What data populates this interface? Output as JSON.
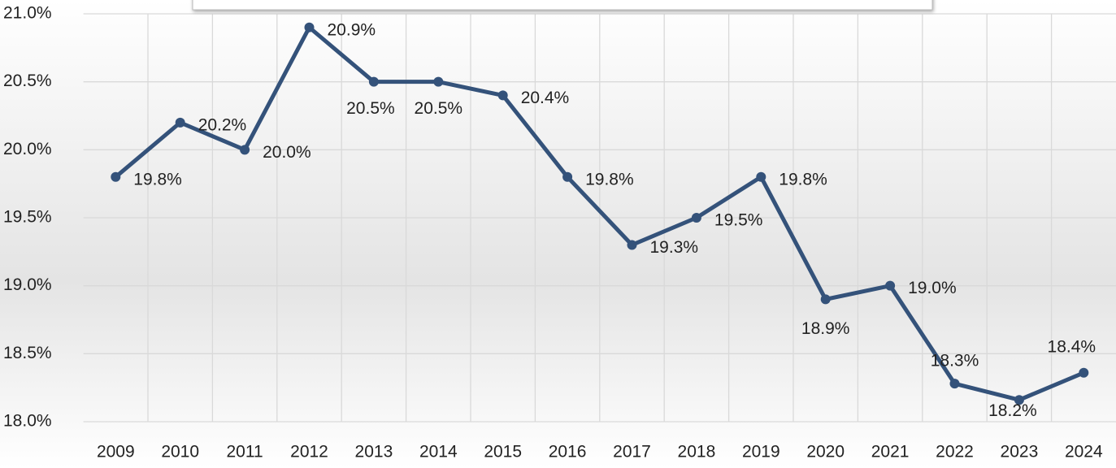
{
  "chart_data": {
    "type": "line",
    "categories": [
      "2009",
      "2010",
      "2011",
      "2012",
      "2013",
      "2014",
      "2015",
      "2016",
      "2017",
      "2018",
      "2019",
      "2020",
      "2021",
      "2022",
      "2023",
      "2024"
    ],
    "series": [
      {
        "color": "#34527a",
        "values": [
          19.8,
          20.2,
          20.0,
          20.9,
          20.5,
          20.5,
          20.4,
          19.8,
          19.3,
          19.5,
          19.8,
          18.9,
          19.0,
          18.28,
          18.16,
          18.36
        ],
        "value_labels": [
          "19.8%",
          "20.2%",
          "20.0%",
          "20.9%",
          "20.5%",
          "20.5%",
          "20.4%",
          "19.8%",
          "19.3%",
          "19.5%",
          "19.8%",
          "18.9%",
          "19.0%",
          "18.3%",
          "18.2%",
          "18.4%"
        ]
      }
    ],
    "ylim": [
      18.0,
      21.0
    ],
    "yticks": [
      {
        "value": 18.0,
        "label": "18.0%"
      },
      {
        "value": 18.5,
        "label": "18.5%"
      },
      {
        "value": 19.0,
        "label": "19.0%"
      },
      {
        "value": 19.5,
        "label": "19.5%"
      },
      {
        "value": 20.0,
        "label": "20.0%"
      },
      {
        "value": 20.5,
        "label": "20.5%"
      },
      {
        "value": 21.0,
        "label": "21.0%"
      }
    ],
    "grid": true
  }
}
